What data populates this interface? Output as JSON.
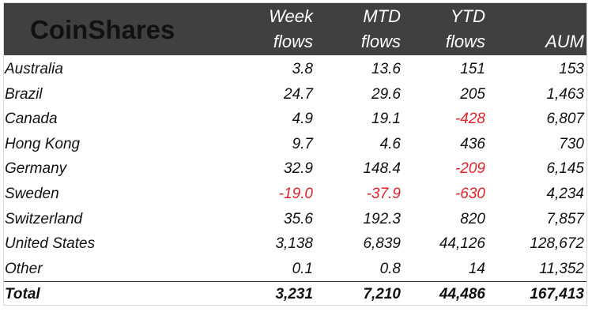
{
  "brand": {
    "logo_text": "CoinShares"
  },
  "columns": [
    {
      "line1": "Week",
      "line2": "flows"
    },
    {
      "line1": "MTD",
      "line2": "flows"
    },
    {
      "line1": "YTD",
      "line2": "flows"
    },
    {
      "line1": "",
      "line2": "AUM"
    }
  ],
  "rows": [
    {
      "name": "Australia",
      "week": "3.8",
      "mtd": "13.6",
      "ytd": "151",
      "aum": "153"
    },
    {
      "name": "Brazil",
      "week": "24.7",
      "mtd": "29.6",
      "ytd": "205",
      "aum": "1,463"
    },
    {
      "name": "Canada",
      "week": "4.9",
      "mtd": "19.1",
      "ytd": "-428",
      "aum": "6,807"
    },
    {
      "name": "Hong Kong",
      "week": "9.7",
      "mtd": "4.6",
      "ytd": "436",
      "aum": "730"
    },
    {
      "name": "Germany",
      "week": "32.9",
      "mtd": "148.4",
      "ytd": "-209",
      "aum": "6,145"
    },
    {
      "name": "Sweden",
      "week": "-19.0",
      "mtd": "-37.9",
      "ytd": "-630",
      "aum": "4,234"
    },
    {
      "name": "Switzerland",
      "week": "35.6",
      "mtd": "192.3",
      "ytd": "820",
      "aum": "7,857"
    },
    {
      "name": "United States",
      "week": "3,138",
      "mtd": "6,839",
      "ytd": "44,126",
      "aum": "128,672"
    },
    {
      "name": "Other",
      "week": "0.1",
      "mtd": "0.8",
      "ytd": "14",
      "aum": "11,352"
    }
  ],
  "total": {
    "name": "Total",
    "week": "3,231",
    "mtd": "7,210",
    "ytd": "44,486",
    "aum": "167,413"
  },
  "colors": {
    "header_bg": "#404040",
    "header_text": "#ffffff",
    "negative": "#e0232b",
    "text": "#111111"
  }
}
